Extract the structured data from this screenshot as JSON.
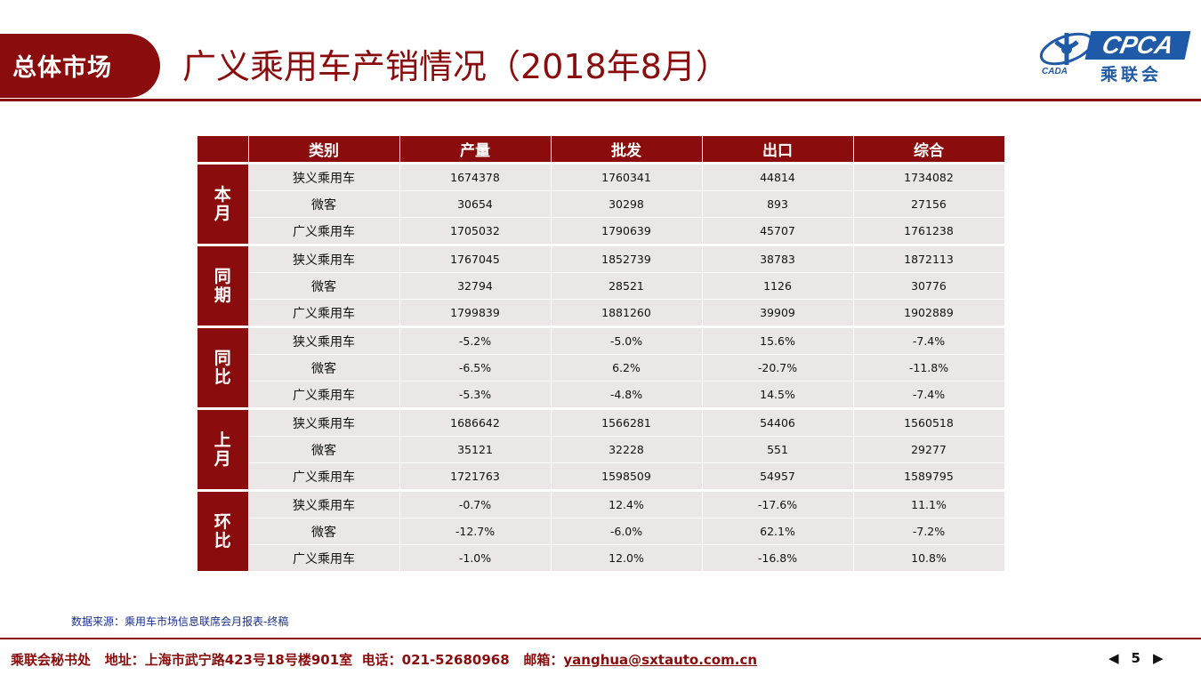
{
  "header": {
    "badge": "总体市场",
    "title": "广义乘用车产销情况（2018年8月）",
    "logo": {
      "name": "CPCA",
      "cn": "乘联会",
      "sub": "CADA"
    }
  },
  "table": {
    "columns": [
      "类别",
      "产量",
      "批发",
      "出口",
      "综合"
    ],
    "groups": [
      {
        "label": "本月",
        "rows": [
          [
            "狭义乘用车",
            "1674378",
            "1760341",
            "44814",
            "1734082"
          ],
          [
            "微客",
            "30654",
            "30298",
            "893",
            "27156"
          ],
          [
            "广义乘用车",
            "1705032",
            "1790639",
            "45707",
            "1761238"
          ]
        ]
      },
      {
        "label": "同期",
        "rows": [
          [
            "狭义乘用车",
            "1767045",
            "1852739",
            "38783",
            "1872113"
          ],
          [
            "微客",
            "32794",
            "28521",
            "1126",
            "30776"
          ],
          [
            "广义乘用车",
            "1799839",
            "1881260",
            "39909",
            "1902889"
          ]
        ]
      },
      {
        "label": "同比",
        "rows": [
          [
            "狭义乘用车",
            "-5.2%",
            "-5.0%",
            "15.6%",
            "-7.4%"
          ],
          [
            "微客",
            "-6.5%",
            "6.2%",
            "-20.7%",
            "-11.8%"
          ],
          [
            "广义乘用车",
            "-5.3%",
            "-4.8%",
            "14.5%",
            "-7.4%"
          ]
        ]
      },
      {
        "label": "上月",
        "rows": [
          [
            "狭义乘用车",
            "1686642",
            "1566281",
            "54406",
            "1560518"
          ],
          [
            "微客",
            "35121",
            "32228",
            "551",
            "29277"
          ],
          [
            "广义乘用车",
            "1721763",
            "1598509",
            "54957",
            "1589795"
          ]
        ]
      },
      {
        "label": "环比",
        "rows": [
          [
            "狭义乘用车",
            "-0.7%",
            "12.4%",
            "-17.6%",
            "11.1%"
          ],
          [
            "微客",
            "-12.7%",
            "-6.0%",
            "62.1%",
            "-7.2%"
          ],
          [
            "广义乘用车",
            "-1.0%",
            "12.0%",
            "-16.8%",
            "10.8%"
          ]
        ]
      }
    ]
  },
  "source": "数据来源：乘用车市场信息联席会月报表-终稿",
  "footer": {
    "org": "乘联会秘书处",
    "address": "地址：上海市武宁路423号18号楼901室",
    "phone": "电话：021-52680968",
    "email_label": "邮箱：",
    "email": "yanghua@sxtauto.com.cn"
  },
  "pager": {
    "page": "5",
    "prev_icon": "triangle-left-icon",
    "next_icon": "triangle-right-icon"
  },
  "colors": {
    "brand": "#8b0c0c",
    "cell_bg": "#ece7e7",
    "logo_blue": "#1e5aa8",
    "source_text": "#1a2f8f"
  }
}
